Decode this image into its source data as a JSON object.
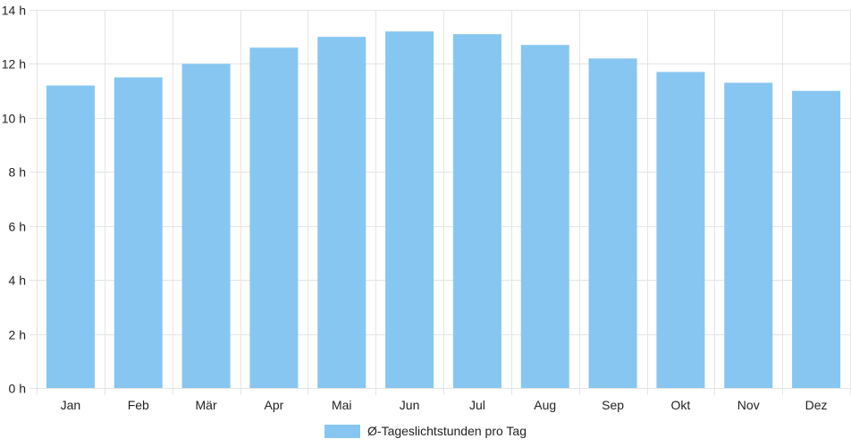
{
  "chart_data": {
    "type": "bar",
    "categories": [
      "Jan",
      "Feb",
      "Mär",
      "Apr",
      "Mai",
      "Jun",
      "Jul",
      "Aug",
      "Sep",
      "Okt",
      "Nov",
      "Dez"
    ],
    "series": [
      {
        "name": "Ø-Tageslichtstunden pro Tag",
        "values": [
          11.2,
          11.5,
          12.0,
          12.6,
          13.0,
          13.2,
          13.1,
          12.7,
          12.2,
          11.7,
          11.3,
          11.0
        ]
      }
    ],
    "yticks": [
      "0 h",
      "2 h",
      "4 h",
      "6 h",
      "8 h",
      "10 h",
      "12 h",
      "14 h"
    ],
    "ylim": [
      0,
      14
    ],
    "grid": true,
    "legend_position": "bottom",
    "colors": {
      "bar": "#87c6f1",
      "grid": "#e5e5e5"
    }
  }
}
